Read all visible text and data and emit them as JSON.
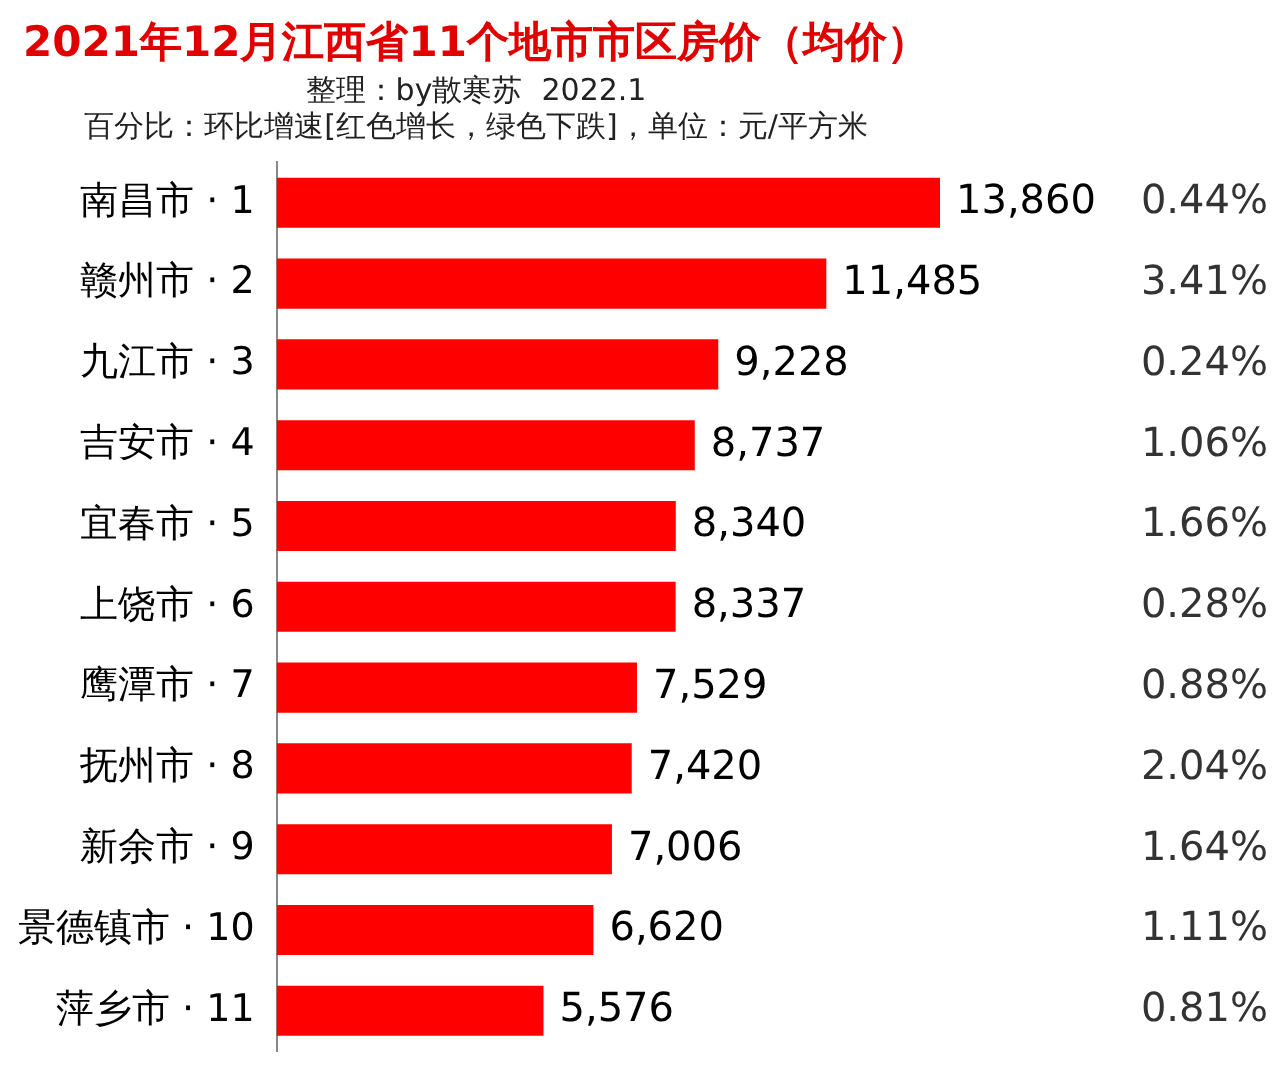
{
  "chart_data": {
    "type": "bar",
    "orientation": "horizontal",
    "title": "2021年12月江西省11个地市市区房价（均价）",
    "subtitle": "整理：by散寒苏  2022.1",
    "categories": [
      "南昌市 · 1",
      "赣州市 · 2",
      "九江市 · 3",
      "吉安市 · 4",
      "宜春市 · 5",
      "上饶市 · 6",
      "鹰潭市 · 7",
      "抚州市 · 8",
      "新余市 · 9",
      "景德镇市 · 10",
      "萍乡市 · 11"
    ],
    "values": [
      13860,
      11485,
      9228,
      8737,
      8340,
      8337,
      7529,
      7420,
      7006,
      6620,
      5576
    ],
    "value_labels": [
      "13,860",
      "11,485",
      "9,228",
      "8,737",
      "8,340",
      "8,337",
      "7,529",
      "7,420",
      "7,006",
      "6,620",
      "5,576"
    ],
    "color": "#ff0000",
    "tick_labels": "y",
    "grid": false,
    "legend": false,
    "annotations": [
      "百分比：环比增速[红色增长，绿色下跌]，单位：元/平方米",
      "0.44%",
      "3.41%",
      "0.24%",
      "1.06%",
      "1.66%",
      "0.28%",
      "0.88%",
      "2.04%",
      "1.64%",
      "1.11%",
      "0.81%"
    ]
  }
}
